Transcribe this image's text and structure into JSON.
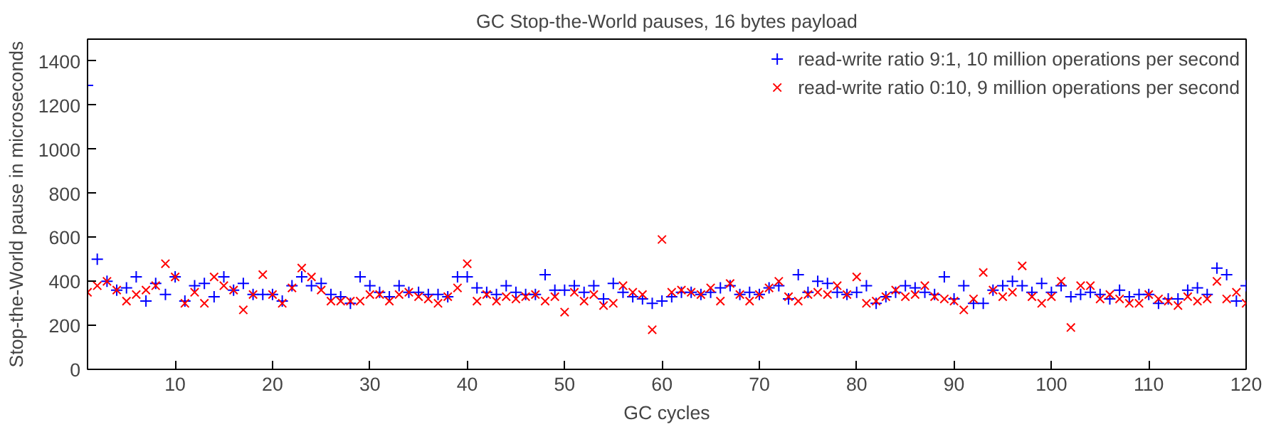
{
  "chart_data": {
    "type": "scatter",
    "title": "GC Stop-the-World pauses, 16 bytes payload",
    "xlabel": "GC cycles",
    "ylabel": "Stop-the-World pause in microseconds",
    "x": [
      1,
      2,
      3,
      4,
      5,
      6,
      7,
      8,
      9,
      10,
      11,
      12,
      13,
      14,
      15,
      16,
      17,
      18,
      19,
      20,
      21,
      22,
      23,
      24,
      25,
      26,
      27,
      28,
      29,
      30,
      31,
      32,
      33,
      34,
      35,
      36,
      37,
      38,
      39,
      40,
      41,
      42,
      43,
      44,
      45,
      46,
      47,
      48,
      49,
      50,
      51,
      52,
      53,
      54,
      55,
      56,
      57,
      58,
      59,
      60,
      61,
      62,
      63,
      64,
      65,
      66,
      67,
      68,
      69,
      70,
      71,
      72,
      73,
      74,
      75,
      76,
      77,
      78,
      79,
      80,
      81,
      82,
      83,
      84,
      85,
      86,
      87,
      88,
      89,
      90,
      91,
      92,
      93,
      94,
      95,
      96,
      97,
      98,
      99,
      100,
      101,
      102,
      103,
      104,
      105,
      106,
      107,
      108,
      109,
      110,
      111,
      112,
      113,
      114,
      115,
      116,
      117,
      118,
      119,
      120
    ],
    "series": [
      {
        "name": "read-write ratio 9:1, 10 million operations per second",
        "color": "#0000ff",
        "marker": "plus",
        "values": [
          1290,
          500,
          400,
          360,
          370,
          420,
          310,
          390,
          340,
          420,
          310,
          380,
          390,
          330,
          420,
          360,
          390,
          340,
          340,
          340,
          310,
          380,
          420,
          380,
          390,
          340,
          330,
          300,
          420,
          380,
          350,
          330,
          380,
          350,
          350,
          340,
          340,
          330,
          420,
          420,
          370,
          350,
          340,
          380,
          350,
          340,
          340,
          430,
          360,
          360,
          380,
          350,
          380,
          320,
          390,
          350,
          330,
          320,
          300,
          310,
          330,
          350,
          350,
          340,
          350,
          370,
          380,
          340,
          350,
          340,
          370,
          380,
          320,
          430,
          350,
          400,
          390,
          350,
          340,
          350,
          380,
          300,
          330,
          350,
          380,
          370,
          350,
          340,
          420,
          320,
          380,
          300,
          300,
          360,
          380,
          400,
          380,
          350,
          390,
          350,
          380,
          330,
          340,
          350,
          340,
          320,
          360,
          330,
          340,
          340,
          300,
          320,
          320,
          360,
          370,
          340,
          460,
          430,
          310,
          380
        ]
      },
      {
        "name": "read-write ratio 0:10, 9 million operations per second",
        "color": "#ff0000",
        "marker": "cross",
        "values": [
          350,
          380,
          400,
          360,
          310,
          340,
          360,
          380,
          480,
          420,
          300,
          350,
          300,
          420,
          380,
          360,
          270,
          340,
          430,
          340,
          300,
          370,
          460,
          420,
          360,
          310,
          310,
          310,
          310,
          340,
          340,
          310,
          340,
          350,
          330,
          320,
          300,
          330,
          370,
          480,
          310,
          340,
          310,
          330,
          320,
          330,
          340,
          310,
          330,
          260,
          350,
          310,
          340,
          290,
          300,
          380,
          350,
          340,
          180,
          590,
          350,
          360,
          350,
          340,
          370,
          310,
          390,
          340,
          310,
          340,
          370,
          400,
          330,
          310,
          340,
          350,
          340,
          380,
          340,
          420,
          300,
          310,
          330,
          360,
          330,
          340,
          380,
          330,
          320,
          310,
          270,
          320,
          440,
          360,
          330,
          350,
          470,
          330,
          300,
          330,
          400,
          190,
          380,
          380,
          320,
          340,
          320,
          300,
          300,
          340,
          320,
          310,
          290,
          330,
          310,
          320,
          400,
          320,
          350,
          300
        ]
      }
    ],
    "xlim": [
      1,
      120
    ],
    "xticks": [
      10,
      20,
      30,
      40,
      50,
      60,
      70,
      80,
      90,
      100,
      110,
      120
    ],
    "ylim": [
      0,
      1500
    ],
    "yticks": [
      0,
      200,
      400,
      600,
      800,
      1000,
      1200,
      1400
    ],
    "grid": false,
    "legend": "top right"
  }
}
